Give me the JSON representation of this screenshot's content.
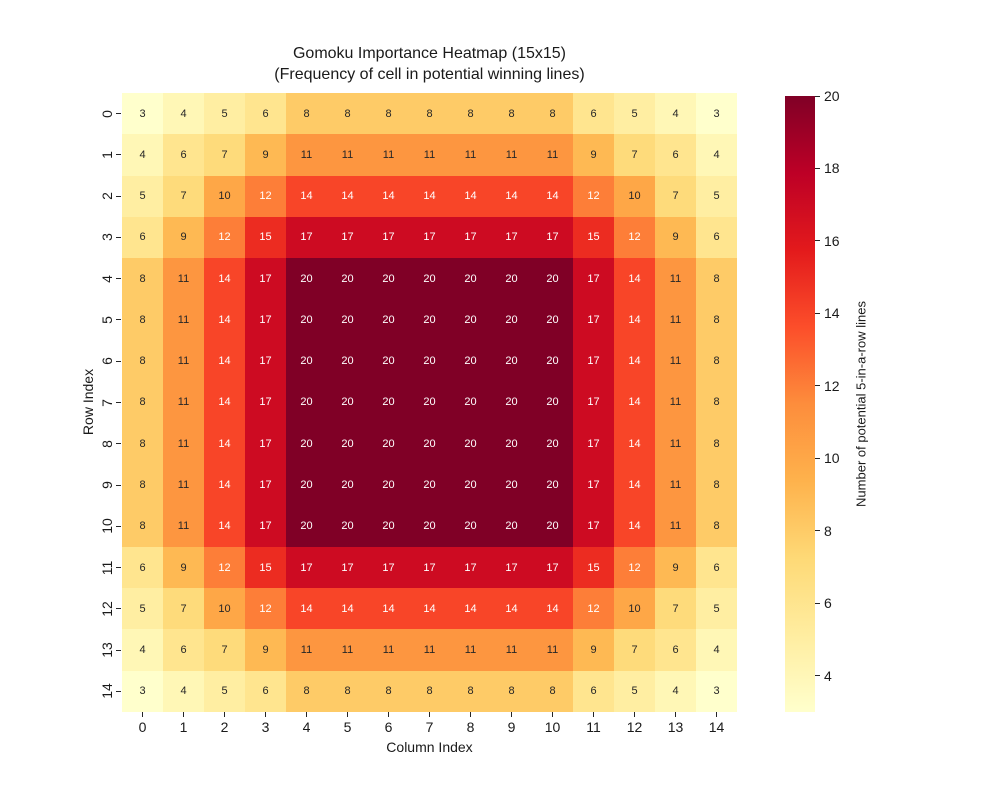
{
  "chart_data": {
    "type": "heatmap",
    "title": "Gomoku Importance Heatmap (15x15)",
    "subtitle": "(Frequency of cell in potential winning lines)",
    "xlabel": "Column Index",
    "ylabel": "Row Index",
    "x_ticks": [
      "0",
      "1",
      "2",
      "3",
      "4",
      "5",
      "6",
      "7",
      "8",
      "9",
      "10",
      "11",
      "12",
      "13",
      "14"
    ],
    "y_ticks": [
      "0",
      "1",
      "2",
      "3",
      "4",
      "5",
      "6",
      "7",
      "8",
      "9",
      "10",
      "11",
      "12",
      "13",
      "14"
    ],
    "values": [
      [
        3,
        4,
        5,
        6,
        8,
        8,
        8,
        8,
        8,
        8,
        8,
        6,
        5,
        4,
        3
      ],
      [
        4,
        6,
        7,
        9,
        11,
        11,
        11,
        11,
        11,
        11,
        11,
        9,
        7,
        6,
        4
      ],
      [
        5,
        7,
        10,
        12,
        14,
        14,
        14,
        14,
        14,
        14,
        14,
        12,
        10,
        7,
        5
      ],
      [
        6,
        9,
        12,
        15,
        17,
        17,
        17,
        17,
        17,
        17,
        17,
        15,
        12,
        9,
        6
      ],
      [
        8,
        11,
        14,
        17,
        20,
        20,
        20,
        20,
        20,
        20,
        20,
        17,
        14,
        11,
        8
      ],
      [
        8,
        11,
        14,
        17,
        20,
        20,
        20,
        20,
        20,
        20,
        20,
        17,
        14,
        11,
        8
      ],
      [
        8,
        11,
        14,
        17,
        20,
        20,
        20,
        20,
        20,
        20,
        20,
        17,
        14,
        11,
        8
      ],
      [
        8,
        11,
        14,
        17,
        20,
        20,
        20,
        20,
        20,
        20,
        20,
        17,
        14,
        11,
        8
      ],
      [
        8,
        11,
        14,
        17,
        20,
        20,
        20,
        20,
        20,
        20,
        20,
        17,
        14,
        11,
        8
      ],
      [
        8,
        11,
        14,
        17,
        20,
        20,
        20,
        20,
        20,
        20,
        20,
        17,
        14,
        11,
        8
      ],
      [
        8,
        11,
        14,
        17,
        20,
        20,
        20,
        20,
        20,
        20,
        20,
        17,
        14,
        11,
        8
      ],
      [
        6,
        9,
        12,
        15,
        17,
        17,
        17,
        17,
        17,
        17,
        17,
        15,
        12,
        9,
        6
      ],
      [
        5,
        7,
        10,
        12,
        14,
        14,
        14,
        14,
        14,
        14,
        14,
        12,
        10,
        7,
        5
      ],
      [
        4,
        6,
        7,
        9,
        11,
        11,
        11,
        11,
        11,
        11,
        11,
        9,
        7,
        6,
        4
      ],
      [
        3,
        4,
        5,
        6,
        8,
        8,
        8,
        8,
        8,
        8,
        8,
        6,
        5,
        4,
        3
      ]
    ],
    "vmin": 3,
    "vmax": 20,
    "grid": false,
    "legend_position": "right-colorbar",
    "colormap": "YlOrRd",
    "colormap_stops": [
      "#ffffcc",
      "#ffeda0",
      "#fed976",
      "#feb24c",
      "#fd8d3c",
      "#fc4e2a",
      "#e31a1c",
      "#bd0026",
      "#800026"
    ],
    "value_colors": {
      "3": "#ffffcc",
      "4": "#fff7b6",
      "5": "#ffeea2",
      "6": "#ffe58f",
      "7": "#fedb7b",
      "8": "#fecb67",
      "9": "#feb953",
      "10": "#fea747",
      "11": "#fd9640",
      "12": "#fd7e38",
      "14": "#f84528",
      "15": "#ec2c21",
      "17": "#cd0b22",
      "20": "#800026"
    },
    "annot_text_dark": "#262626",
    "annot_text_light": "#ffffff",
    "annot_white_threshold": 12,
    "colorbar": {
      "label": "Number of potential 5-in-a-row lines",
      "ticks": [
        "4",
        "6",
        "8",
        "10",
        "12",
        "14",
        "16",
        "18",
        "20"
      ]
    }
  }
}
